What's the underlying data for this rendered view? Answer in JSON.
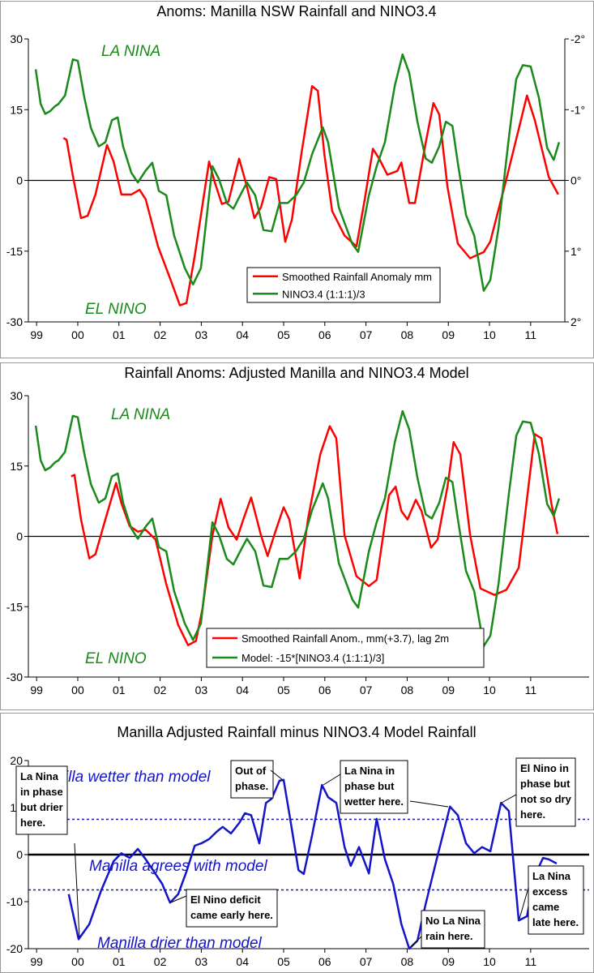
{
  "chart_data": [
    {
      "type": "line",
      "title": "Anoms: Manilla NSW Rainfall and NINO3.4",
      "xlim": [
        1998.8,
        2011.83
      ],
      "xticks": [
        {
          "value": 1999,
          "label": "99"
        },
        {
          "value": 2000,
          "label": "00"
        },
        {
          "value": 2001,
          "label": "01"
        },
        {
          "value": 2002,
          "label": "02"
        },
        {
          "value": 2003,
          "label": "03"
        },
        {
          "value": 2004,
          "label": "04"
        },
        {
          "value": 2005,
          "label": "05"
        },
        {
          "value": 2006,
          "label": "06"
        },
        {
          "value": 2007,
          "label": "07"
        },
        {
          "value": 2008,
          "label": "08"
        },
        {
          "value": 2009,
          "label": "09"
        },
        {
          "value": 2010,
          "label": "10"
        },
        {
          "value": 2011,
          "label": "11"
        }
      ],
      "ylim": [
        -30,
        30
      ],
      "yticks": [
        30,
        15,
        0,
        -15,
        -30
      ],
      "y2lim": [
        2,
        -2
      ],
      "y2ticks": [
        {
          "value": -2,
          "label": "-2°"
        },
        {
          "value": -1,
          "label": "-1°"
        },
        {
          "value": 0,
          "label": "0°"
        },
        {
          "value": 1,
          "label": "1°"
        },
        {
          "value": 2,
          "label": "2°"
        }
      ],
      "annotations": [
        "LA NINA",
        "EL NINO"
      ],
      "annotation_color": "#1a8a1a",
      "series": [
        {
          "name": "Smoothed Rainfall Anomaly mm",
          "color": "#ff0000",
          "x": [
            1999.65,
            1999.73,
            1999.88,
            2000.08,
            2000.24,
            2000.43,
            2000.71,
            2000.87,
            2001.06,
            2001.3,
            2001.5,
            2001.65,
            2001.95,
            2002.25,
            2002.48,
            2002.64,
            2002.84,
            2003.19,
            2003.33,
            2003.5,
            2003.66,
            2003.92,
            2004.11,
            2004.29,
            2004.45,
            2004.65,
            2004.82,
            2005.04,
            2005.2,
            2005.43,
            2005.69,
            2005.83,
            2005.99,
            2006.18,
            2006.48,
            2006.77,
            2006.97,
            2007.17,
            2007.32,
            2007.52,
            2007.76,
            2007.86,
            2008.05,
            2008.19,
            2008.45,
            2008.64,
            2008.78,
            2008.98,
            2009.23,
            2009.53,
            2009.86,
            2010.02,
            2010.41,
            2010.91,
            2011.1,
            2011.44,
            2011.67
          ],
          "values": [
            9,
            8.6,
            1,
            -8,
            -7.5,
            -3,
            7.5,
            4,
            -3,
            -3,
            -2,
            -4,
            -14,
            -21,
            -26.5,
            -26,
            -16,
            4,
            -0.5,
            -5,
            -4.5,
            4.6,
            -1.4,
            -8,
            -5.7,
            0.7,
            0.3,
            -13,
            -8.3,
            5.5,
            20,
            19,
            5.5,
            -6.5,
            -11.7,
            -14,
            -4,
            6.7,
            4.6,
            1.2,
            2,
            3.8,
            -4.8,
            -4.8,
            8,
            16.4,
            14,
            -1.4,
            -13.4,
            -16.5,
            -15.2,
            -13,
            0.3,
            18,
            12.8,
            0.7,
            -3
          ]
        },
        {
          "name": "NINO3.4 (1:1:1)/3",
          "color": "#1a8a1a",
          "axis": "y2",
          "x": [
            1998.98,
            1999.1,
            1999.21,
            1999.33,
            1999.45,
            1999.53,
            1999.69,
            1999.88,
            2000.0,
            2000.16,
            2000.32,
            2000.51,
            2000.67,
            2000.83,
            2000.97,
            2001.1,
            2001.3,
            2001.46,
            2001.65,
            2001.81,
            2001.97,
            2002.15,
            2002.34,
            2002.6,
            2002.8,
            2002.99,
            2003.27,
            2003.43,
            2003.62,
            2003.78,
            2003.98,
            2004.11,
            2004.31,
            2004.51,
            2004.71,
            2004.9,
            2005.1,
            2005.3,
            2005.49,
            2005.69,
            2005.95,
            2006.08,
            2006.34,
            2006.67,
            2006.81,
            2007.07,
            2007.26,
            2007.46,
            2007.7,
            2007.89,
            2008.05,
            2008.25,
            2008.45,
            2008.6,
            2008.78,
            2008.94,
            2009.1,
            2009.23,
            2009.43,
            2009.63,
            2009.86,
            2010.02,
            2010.22,
            2010.47,
            2010.65,
            2010.81,
            2011.0,
            2011.2,
            2011.4,
            2011.56,
            2011.69
          ],
          "values": [
            -1.57,
            -1.08,
            -0.94,
            -0.98,
            -1.05,
            -1.08,
            -1.2,
            -1.71,
            -1.69,
            -1.17,
            -0.74,
            -0.48,
            -0.54,
            -0.85,
            -0.89,
            -0.48,
            -0.11,
            0.03,
            -0.14,
            -0.25,
            0.15,
            0.21,
            0.78,
            1.24,
            1.47,
            1.24,
            -0.2,
            -0.02,
            0.32,
            0.4,
            0.17,
            0.03,
            0.21,
            0.7,
            0.72,
            0.32,
            0.32,
            0.21,
            0.03,
            -0.37,
            -0.75,
            -0.54,
            0.38,
            0.9,
            1.01,
            0.21,
            -0.2,
            -0.54,
            -1.34,
            -1.78,
            -1.52,
            -0.83,
            -0.31,
            -0.25,
            -0.48,
            -0.83,
            -0.77,
            -0.25,
            0.49,
            0.78,
            1.56,
            1.41,
            0.67,
            -0.6,
            -1.43,
            -1.63,
            -1.61,
            -1.17,
            -0.46,
            -0.29,
            -0.54
          ]
        }
      ]
    },
    {
      "type": "line",
      "title": "Rainfall Anoms: Adjusted Manilla and NINO3.4 Model",
      "xlim": [
        1998.8,
        2012.42
      ],
      "xticks": [
        {
          "value": 1999,
          "label": "99"
        },
        {
          "value": 2000,
          "label": "00"
        },
        {
          "value": 2001,
          "label": "01"
        },
        {
          "value": 2002,
          "label": "02"
        },
        {
          "value": 2003,
          "label": "03"
        },
        {
          "value": 2004,
          "label": "04"
        },
        {
          "value": 2005,
          "label": "05"
        },
        {
          "value": 2006,
          "label": "06"
        },
        {
          "value": 2007,
          "label": "07"
        },
        {
          "value": 2008,
          "label": "08"
        },
        {
          "value": 2009,
          "label": "09"
        },
        {
          "value": 2010,
          "label": "10"
        },
        {
          "value": 2011,
          "label": "11"
        }
      ],
      "ylim": [
        -30,
        30
      ],
      "yticks": [
        30,
        15,
        0,
        -15,
        -30
      ],
      "annotations": [
        "LA NINA",
        "EL NINO"
      ],
      "annotation_color": "#1a8a1a",
      "series": [
        {
          "name": "Smoothed Rainfall Anom., mm(+3.7), lag 2m",
          "color": "#ff0000",
          "x": [
            1999.84,
            1999.92,
            2000.08,
            2000.28,
            2000.43,
            2000.67,
            2000.93,
            2001.06,
            2001.26,
            2001.46,
            2001.65,
            2001.89,
            2002.15,
            2002.44,
            2002.68,
            2002.87,
            2003.03,
            2003.27,
            2003.47,
            2003.66,
            2003.86,
            2004.02,
            2004.21,
            2004.45,
            2004.61,
            2004.8,
            2005.0,
            2005.14,
            2005.39,
            2005.59,
            2005.89,
            2006.12,
            2006.28,
            2006.48,
            2006.77,
            2007.07,
            2007.26,
            2007.56,
            2007.72,
            2007.86,
            2008.01,
            2008.21,
            2008.35,
            2008.58,
            2008.74,
            2008.98,
            2009.13,
            2009.29,
            2009.53,
            2009.78,
            2010.12,
            2010.41,
            2010.71,
            2011.1,
            2011.26,
            2011.5,
            2011.65
          ],
          "values": [
            12.8,
            13.1,
            3.6,
            -4.7,
            -3.8,
            3.6,
            11.4,
            7.1,
            2.2,
            1,
            1.4,
            -0.7,
            -10.2,
            -18.9,
            -23.2,
            -22.3,
            -15.4,
            0.2,
            8,
            1.9,
            -0.7,
            3.6,
            8.3,
            0.2,
            -4.2,
            1,
            6.2,
            3.6,
            -9,
            3.6,
            17.5,
            23.5,
            20.9,
            0.2,
            -8.5,
            -10.6,
            -9.3,
            8.8,
            10.6,
            5.4,
            3.6,
            7.8,
            5.4,
            -2.4,
            -0.7,
            10.6,
            20.1,
            17.5,
            0.2,
            -11.1,
            -12.5,
            -11.4,
            -6.7,
            21.8,
            20.9,
            7.1,
            0.5
          ]
        },
        {
          "name": "Model: -15*[NINO3.4 (1:1:1)/3]",
          "color": "#1a8a1a",
          "x": [
            1998.98,
            1999.1,
            1999.21,
            1999.33,
            1999.45,
            1999.53,
            1999.69,
            1999.88,
            2000.0,
            2000.16,
            2000.32,
            2000.51,
            2000.67,
            2000.83,
            2000.97,
            2001.1,
            2001.3,
            2001.46,
            2001.65,
            2001.81,
            2001.97,
            2002.15,
            2002.34,
            2002.6,
            2002.8,
            2002.99,
            2003.27,
            2003.43,
            2003.62,
            2003.78,
            2003.98,
            2004.11,
            2004.31,
            2004.51,
            2004.71,
            2004.9,
            2005.1,
            2005.3,
            2005.49,
            2005.69,
            2005.95,
            2006.08,
            2006.34,
            2006.67,
            2006.81,
            2007.07,
            2007.26,
            2007.46,
            2007.7,
            2007.89,
            2008.05,
            2008.25,
            2008.45,
            2008.6,
            2008.78,
            2008.94,
            2009.1,
            2009.23,
            2009.43,
            2009.63,
            2009.86,
            2010.02,
            2010.22,
            2010.47,
            2010.65,
            2010.81,
            2011.0,
            2011.2,
            2011.4,
            2011.56,
            2011.69
          ],
          "values": [
            23.6,
            16.2,
            14.1,
            14.7,
            15.8,
            16.2,
            18,
            25.7,
            25.4,
            17.6,
            11.1,
            7.2,
            8.1,
            12.8,
            13.4,
            7.2,
            1.7,
            -0.5,
            2.1,
            3.8,
            -2.3,
            -3.2,
            -11.7,
            -18.6,
            -22.1,
            -18.6,
            3,
            0.3,
            -4.8,
            -6,
            -2.6,
            -0.5,
            -3.2,
            -10.5,
            -10.8,
            -4.8,
            -4.8,
            -3.2,
            -0.5,
            5.6,
            11.3,
            8.1,
            -5.7,
            -13.5,
            -15.2,
            -3.2,
            3,
            8.1,
            20.1,
            26.7,
            22.8,
            12.5,
            4.7,
            3.8,
            7.2,
            12.5,
            11.6,
            3.8,
            -7.4,
            -11.7,
            -23.4,
            -21.2,
            -10.1,
            9,
            21.5,
            24.5,
            24.2,
            17.6,
            6.9,
            4.4,
            8.1
          ]
        }
      ]
    },
    {
      "type": "line",
      "title": "Manilla Adjusted Rainfall minus NINO3.4 Model Rainfall",
      "xlim": [
        1998.8,
        2012.42
      ],
      "xticks": [
        {
          "value": 1999,
          "label": "99"
        },
        {
          "value": 2000,
          "label": "00"
        },
        {
          "value": 2001,
          "label": "01"
        },
        {
          "value": 2002,
          "label": "02"
        },
        {
          "value": 2003,
          "label": "03"
        },
        {
          "value": 2004,
          "label": "04"
        },
        {
          "value": 2005,
          "label": "05"
        },
        {
          "value": 2006,
          "label": "06"
        },
        {
          "value": 2007,
          "label": "07"
        },
        {
          "value": 2008,
          "label": "08"
        },
        {
          "value": 2009,
          "label": "09"
        },
        {
          "value": 2010,
          "label": "10"
        },
        {
          "value": 2011,
          "label": "11"
        }
      ],
      "ylim": [
        -20,
        20
      ],
      "yticks": [
        20,
        10,
        0,
        -10,
        -20
      ],
      "reference_lines": [
        7.5,
        -7.5
      ],
      "annotations": [
        "Manilla wetter than model",
        "Manilla agrees with model",
        "Manilla drier than model"
      ],
      "annotation_color": "#1414c8",
      "callouts": [
        [
          "La Nina",
          "in phase",
          "but drier",
          "here."
        ],
        [
          "Out of",
          "phase."
        ],
        [
          "La Nina in",
          "phase but",
          "wetter here."
        ],
        [
          "El Nino in",
          "phase but",
          "not so dry",
          "here."
        ],
        [
          "El Nino deficit",
          "came early here."
        ],
        [
          "No La Nina",
          "rain here."
        ],
        [
          "La Nina",
          "excess",
          "came",
          "late here."
        ]
      ],
      "series": [
        {
          "color": "#1414c8",
          "x": [
            1999.78,
            2000.02,
            2000.28,
            2000.57,
            2000.87,
            2001.06,
            2001.26,
            2001.46,
            2001.65,
            2001.85,
            2002.05,
            2002.24,
            2002.44,
            2002.64,
            2002.84,
            2003.0,
            2003.19,
            2003.39,
            2003.52,
            2003.72,
            2003.92,
            2004.06,
            2004.21,
            2004.41,
            2004.57,
            2004.71,
            2004.9,
            2005.0,
            2005.16,
            2005.36,
            2005.49,
            2005.69,
            2005.93,
            2006.08,
            2006.28,
            2006.48,
            2006.63,
            2006.83,
            2007.07,
            2007.26,
            2007.46,
            2007.66,
            2007.86,
            2008.05,
            2008.25,
            2008.45,
            2008.74,
            2009.04,
            2009.23,
            2009.43,
            2009.63,
            2009.82,
            2010.02,
            2010.28,
            2010.47,
            2010.71,
            2010.91,
            2011.1,
            2011.3,
            2011.44,
            2011.63
          ],
          "values": [
            -8.4,
            -18,
            -14.8,
            -7.6,
            -1.4,
            0.3,
            -0.7,
            1.2,
            -1,
            -3.6,
            -6.2,
            -10.2,
            -8.4,
            -3.6,
            1.9,
            2.4,
            3.3,
            5,
            5.9,
            4.5,
            6.7,
            8.8,
            8.4,
            2.4,
            11,
            11.9,
            15.7,
            15.9,
            7.6,
            -3.3,
            -4.1,
            4.1,
            14.8,
            12.2,
            11,
            1.6,
            -2.4,
            1.6,
            -4,
            7.6,
            -1,
            -6.2,
            -14.8,
            -20,
            -18.3,
            -10.5,
            -0.2,
            10.2,
            8.4,
            2.4,
            0.3,
            1.6,
            0.7,
            11,
            9.3,
            -14,
            -13.1,
            -4.5,
            -0.7,
            -1,
            -1.9
          ]
        }
      ]
    }
  ]
}
